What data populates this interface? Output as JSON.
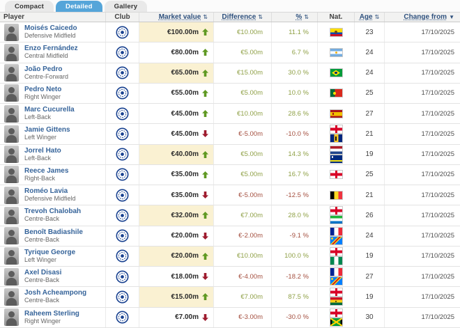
{
  "tabs": [
    {
      "label": "Compact",
      "active": false
    },
    {
      "label": "Detailed",
      "active": true
    },
    {
      "label": "Gallery",
      "active": false
    }
  ],
  "header": {
    "player": "Player",
    "club": "Club",
    "market_value": "Market value",
    "difference": "Difference",
    "percent": "%",
    "nat": "Nat.",
    "age": "Age",
    "change_from": "Change from"
  },
  "icons": {
    "sort": "⇅",
    "sorted_desc": "▼",
    "club_badge": "chelsea-crest",
    "trend_up": "green-up-arrow",
    "trend_down": "red-down-arrow"
  },
  "colors": {
    "active_tab": "#55a5d9",
    "highlight_cell": "#faf1d2",
    "positive_text": "#8fa046",
    "negative_text": "#a44f3f",
    "arrow_up": "#5f9922",
    "arrow_down": "#9e1b2e",
    "player_link": "#36649a"
  },
  "table": {
    "rows": [
      {
        "name": "Moisés Caicedo",
        "position": "Defensive Midfield",
        "club": "Chelsea FC",
        "market_value": "€100.00m",
        "trend": "up",
        "highlight": true,
        "difference": "€10.00m",
        "percent": "11.1 %",
        "change_positive": true,
        "nations": [
          "ecuador"
        ],
        "age": "23",
        "change_from": "17/10/2025"
      },
      {
        "name": "Enzo Fernández",
        "position": "Central Midfield",
        "club": "Chelsea FC",
        "market_value": "€80.00m",
        "trend": "up",
        "highlight": false,
        "difference": "€5.00m",
        "percent": "6.7 %",
        "change_positive": true,
        "nations": [
          "argentina"
        ],
        "age": "24",
        "change_from": "17/10/2025"
      },
      {
        "name": "João Pedro",
        "position": "Centre-Forward",
        "club": "Chelsea FC",
        "market_value": "€65.00m",
        "trend": "up",
        "highlight": true,
        "difference": "€15.00m",
        "percent": "30.0 %",
        "change_positive": true,
        "nations": [
          "brazil"
        ],
        "age": "24",
        "change_from": "17/10/2025"
      },
      {
        "name": "Pedro Neto",
        "position": "Right Winger",
        "club": "Chelsea FC",
        "market_value": "€55.00m",
        "trend": "up",
        "highlight": false,
        "difference": "€5.00m",
        "percent": "10.0 %",
        "change_positive": true,
        "nations": [
          "portugal"
        ],
        "age": "25",
        "change_from": "17/10/2025"
      },
      {
        "name": "Marc Cucurella",
        "position": "Left-Back",
        "club": "Chelsea FC",
        "market_value": "€45.00m",
        "trend": "up",
        "highlight": false,
        "difference": "€10.00m",
        "percent": "28.6 %",
        "change_positive": true,
        "nations": [
          "spain"
        ],
        "age": "27",
        "change_from": "17/10/2025"
      },
      {
        "name": "Jamie Gittens",
        "position": "Left Winger",
        "club": "Chelsea FC",
        "market_value": "€45.00m",
        "trend": "down",
        "highlight": false,
        "difference": "€-5.00m",
        "percent": "-10.0 %",
        "change_positive": false,
        "nations": [
          "england",
          "barbados"
        ],
        "age": "21",
        "change_from": "17/10/2025"
      },
      {
        "name": "Jorrel Hato",
        "position": "Left-Back",
        "club": "Chelsea FC",
        "market_value": "€40.00m",
        "trend": "up",
        "highlight": true,
        "difference": "€5.00m",
        "percent": "14.3 %",
        "change_positive": true,
        "nations": [
          "netherlands",
          "curacao"
        ],
        "age": "19",
        "change_from": "17/10/2025"
      },
      {
        "name": "Reece James",
        "position": "Right-Back",
        "club": "Chelsea FC",
        "market_value": "€35.00m",
        "trend": "up",
        "highlight": false,
        "difference": "€5.00m",
        "percent": "16.7 %",
        "change_positive": true,
        "nations": [
          "england"
        ],
        "age": "25",
        "change_from": "17/10/2025"
      },
      {
        "name": "Roméo Lavia",
        "position": "Defensive Midfield",
        "club": "Chelsea FC",
        "market_value": "€35.00m",
        "trend": "down",
        "highlight": false,
        "difference": "€-5.00m",
        "percent": "-12.5 %",
        "change_positive": false,
        "nations": [
          "belgium"
        ],
        "age": "21",
        "change_from": "17/10/2025"
      },
      {
        "name": "Trevoh Chalobah",
        "position": "Centre-Back",
        "club": "Chelsea FC",
        "market_value": "€32.00m",
        "trend": "up",
        "highlight": true,
        "difference": "€7.00m",
        "percent": "28.0 %",
        "change_positive": true,
        "nations": [
          "england",
          "sierra-leone"
        ],
        "age": "26",
        "change_from": "17/10/2025"
      },
      {
        "name": "Benoît Badiashile",
        "position": "Centre-Back",
        "club": "Chelsea FC",
        "market_value": "€20.00m",
        "trend": "down",
        "highlight": false,
        "difference": "€-2.00m",
        "percent": "-9.1 %",
        "change_positive": false,
        "nations": [
          "france",
          "dr-congo"
        ],
        "age": "24",
        "change_from": "17/10/2025"
      },
      {
        "name": "Tyrique George",
        "position": "Left Winger",
        "club": "Chelsea FC",
        "market_value": "€20.00m",
        "trend": "up",
        "highlight": true,
        "difference": "€10.00m",
        "percent": "100.0 %",
        "change_positive": true,
        "nations": [
          "england",
          "nigeria"
        ],
        "age": "19",
        "change_from": "17/10/2025"
      },
      {
        "name": "Axel Disasi",
        "position": "Centre-Back",
        "club": "Chelsea FC",
        "market_value": "€18.00m",
        "trend": "down",
        "highlight": false,
        "difference": "€-4.00m",
        "percent": "-18.2 %",
        "change_positive": false,
        "nations": [
          "france",
          "dr-congo"
        ],
        "age": "27",
        "change_from": "17/10/2025"
      },
      {
        "name": "Josh Acheampong",
        "position": "Centre-Back",
        "club": "Chelsea FC",
        "market_value": "€15.00m",
        "trend": "up",
        "highlight": true,
        "difference": "€7.00m",
        "percent": "87.5 %",
        "change_positive": true,
        "nations": [
          "england",
          "ghana"
        ],
        "age": "19",
        "change_from": "17/10/2025"
      },
      {
        "name": "Raheem Sterling",
        "position": "Right Winger",
        "club": "Chelsea FC",
        "market_value": "€7.00m",
        "trend": "down",
        "highlight": false,
        "difference": "€-3.00m",
        "percent": "-30.0 %",
        "change_positive": false,
        "nations": [
          "england",
          "jamaica"
        ],
        "age": "30",
        "change_from": "17/10/2025"
      }
    ]
  }
}
